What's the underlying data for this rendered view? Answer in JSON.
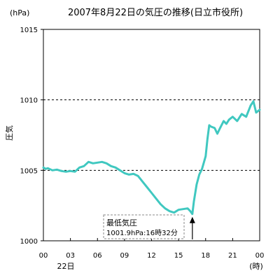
{
  "chart_data": {
    "type": "line",
    "title": "2007年8月22日の気圧の推移(日立市役所)",
    "ylabel": "圧気",
    "yunit": "(hPa)",
    "xunit": "(時)",
    "date_label": "22日",
    "ylim": [
      1000,
      1015
    ],
    "xlim": [
      0,
      24
    ],
    "yticks": [
      "1000",
      "1005",
      "1010",
      "1015"
    ],
    "xticks": [
      "00",
      "03",
      "06",
      "09",
      "12",
      "15",
      "18",
      "21",
      "00"
    ],
    "xtick_hours": [
      0,
      3,
      6,
      9,
      12,
      15,
      18,
      21,
      24
    ],
    "reference_lines": [
      1005,
      1010
    ],
    "line_color": "#40c8c0",
    "annotation": {
      "line1": "最低気圧",
      "line2": "1001.9hPa:16時32分",
      "x": 16.53,
      "y": 1001.9
    },
    "series": [
      {
        "name": "",
        "x": [
          0,
          0.25,
          0.5,
          1,
          1.5,
          2,
          2.5,
          3,
          3.5,
          4,
          4.5,
          5,
          5.5,
          6,
          6.5,
          7,
          7.5,
          8,
          8.5,
          9,
          9.5,
          10,
          10.5,
          11,
          11.5,
          12,
          12.5,
          13,
          13.5,
          14,
          14.5,
          15,
          15.5,
          16,
          16.3,
          16.53,
          16.7,
          17,
          17.3,
          17.6,
          18,
          18.2,
          18.4,
          18.6,
          19,
          19.3,
          19.6,
          20,
          20.3,
          20.6,
          21,
          21.5,
          22,
          22.5,
          23,
          23.3,
          23.6,
          24
        ],
        "values": [
          1005.2,
          1005.1,
          1005.15,
          1005.0,
          1005.05,
          1004.95,
          1004.9,
          1004.95,
          1004.9,
          1005.2,
          1005.3,
          1005.6,
          1005.5,
          1005.55,
          1005.6,
          1005.5,
          1005.3,
          1005.2,
          1005.0,
          1004.8,
          1004.7,
          1004.75,
          1004.6,
          1004.2,
          1003.8,
          1003.4,
          1003.0,
          1002.6,
          1002.3,
          1002.1,
          1002.0,
          1002.2,
          1002.25,
          1002.3,
          1002.1,
          1001.9,
          1002.8,
          1004.0,
          1004.7,
          1005.1,
          1006.0,
          1007.2,
          1008.2,
          1008.1,
          1008.0,
          1007.6,
          1008.0,
          1008.5,
          1008.3,
          1008.6,
          1008.8,
          1008.5,
          1009.0,
          1008.8,
          1009.6,
          1009.9,
          1009.1,
          1009.3
        ]
      }
    ]
  }
}
